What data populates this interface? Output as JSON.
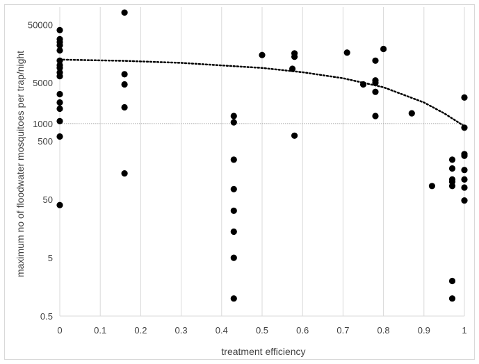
{
  "chart_data": {
    "type": "scatter",
    "xlabel": "treatment efficiency",
    "ylabel": "maximum no of floodwater mosquitoes per trap/night",
    "x_ticks": [
      "0",
      "0.1",
      "0.2",
      "0.3",
      "0.4",
      "0.5",
      "0.6",
      "0.7",
      "0.8",
      "0.9",
      "1"
    ],
    "y_ticks": [
      {
        "label": "0.5",
        "value": 0.5
      },
      {
        "label": "5",
        "value": 5
      },
      {
        "label": "50",
        "value": 50
      },
      {
        "label": "500",
        "value": 500
      },
      {
        "label": "1000",
        "value": 1000
      },
      {
        "label": "5000",
        "value": 5000
      },
      {
        "label": "50000",
        "value": 50000
      }
    ],
    "xlim": [
      0,
      1
    ],
    "ylim": [
      0.5,
      100000
    ],
    "y_scale": "log",
    "grid": "vertical",
    "reference_line": {
      "y": 1000,
      "style": "dotted",
      "color": "#a6a6a6"
    },
    "trend_line": {
      "style": "dotted",
      "color": "#000000",
      "points": [
        [
          0,
          12500
        ],
        [
          0.16,
          11900
        ],
        [
          0.3,
          11000
        ],
        [
          0.5,
          9000
        ],
        [
          0.6,
          7600
        ],
        [
          0.7,
          6000
        ],
        [
          0.8,
          4200
        ],
        [
          0.9,
          2300
        ],
        [
          0.95,
          1500
        ],
        [
          1,
          900
        ]
      ]
    },
    "points": [
      {
        "x": 0,
        "y": 40000
      },
      {
        "x": 0,
        "y": 28000
      },
      {
        "x": 0,
        "y": 25000
      },
      {
        "x": 0,
        "y": 22000
      },
      {
        "x": 0,
        "y": 18000
      },
      {
        "x": 0,
        "y": 12000
      },
      {
        "x": 0,
        "y": 10000
      },
      {
        "x": 0,
        "y": 9000
      },
      {
        "x": 0,
        "y": 7500
      },
      {
        "x": 0,
        "y": 6500
      },
      {
        "x": 0,
        "y": 3200
      },
      {
        "x": 0,
        "y": 2300
      },
      {
        "x": 0,
        "y": 1800
      },
      {
        "x": 0,
        "y": 1100
      },
      {
        "x": 0,
        "y": 600
      },
      {
        "x": 0,
        "y": 40
      },
      {
        "x": 0.16,
        "y": 80000
      },
      {
        "x": 0.16,
        "y": 7000
      },
      {
        "x": 0.16,
        "y": 4700
      },
      {
        "x": 0.16,
        "y": 1900
      },
      {
        "x": 0.16,
        "y": 140
      },
      {
        "x": 0.43,
        "y": 1350
      },
      {
        "x": 0.43,
        "y": 1050
      },
      {
        "x": 0.43,
        "y": 240
      },
      {
        "x": 0.43,
        "y": 75
      },
      {
        "x": 0.43,
        "y": 32
      },
      {
        "x": 0.43,
        "y": 14
      },
      {
        "x": 0.43,
        "y": 5
      },
      {
        "x": 0.43,
        "y": 1
      },
      {
        "x": 0.5,
        "y": 15000
      },
      {
        "x": 0.575,
        "y": 8700
      },
      {
        "x": 0.58,
        "y": 16000
      },
      {
        "x": 0.58,
        "y": 14000
      },
      {
        "x": 0.58,
        "y": 620
      },
      {
        "x": 0.71,
        "y": 16500
      },
      {
        "x": 0.75,
        "y": 4700
      },
      {
        "x": 0.78,
        "y": 12000
      },
      {
        "x": 0.78,
        "y": 5500
      },
      {
        "x": 0.78,
        "y": 5000
      },
      {
        "x": 0.78,
        "y": 3500
      },
      {
        "x": 0.78,
        "y": 1350
      },
      {
        "x": 0.8,
        "y": 19000
      },
      {
        "x": 0.87,
        "y": 1500
      },
      {
        "x": 0.92,
        "y": 85
      },
      {
        "x": 0.97,
        "y": 240
      },
      {
        "x": 0.97,
        "y": 170
      },
      {
        "x": 0.97,
        "y": 110
      },
      {
        "x": 0.97,
        "y": 100
      },
      {
        "x": 0.97,
        "y": 85
      },
      {
        "x": 0.97,
        "y": 2
      },
      {
        "x": 0.97,
        "y": 1
      },
      {
        "x": 1,
        "y": 2800
      },
      {
        "x": 1,
        "y": 850
      },
      {
        "x": 1,
        "y": 300
      },
      {
        "x": 1,
        "y": 280
      },
      {
        "x": 1,
        "y": 160
      },
      {
        "x": 1,
        "y": 110
      },
      {
        "x": 1,
        "y": 80
      },
      {
        "x": 1,
        "y": 48
      }
    ],
    "marker_color": "#000000"
  }
}
